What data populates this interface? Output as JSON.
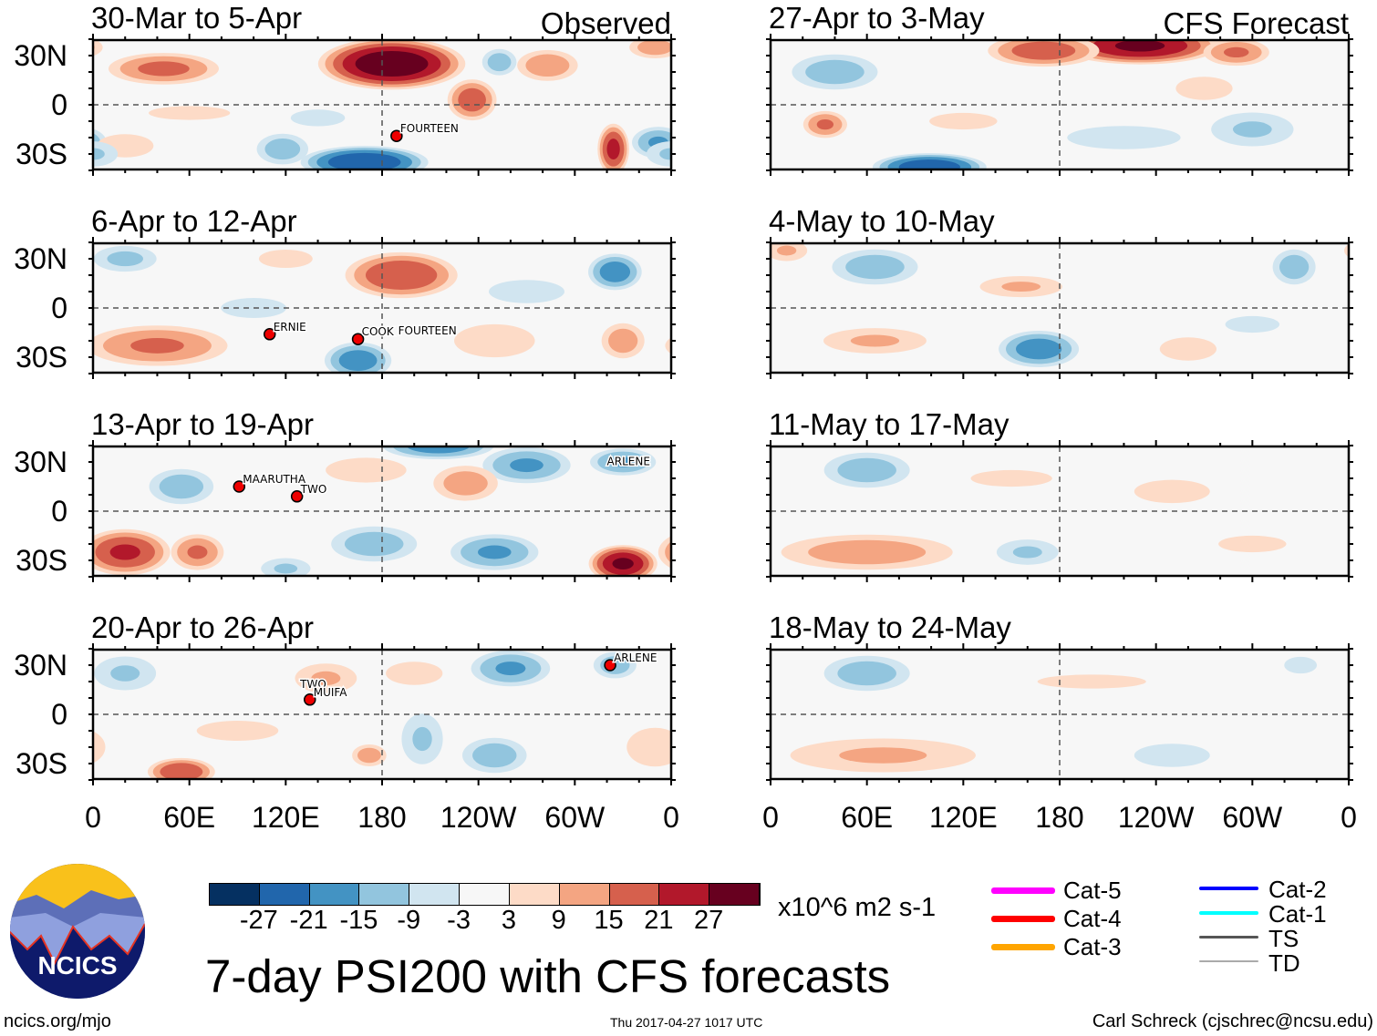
{
  "title": "7-day PSI200 with CFS forecasts",
  "units": "x10^6 m2 s-1",
  "footer": {
    "left": "ncics.org/mjo",
    "center": "Thu 2017-04-27 1017 UTC",
    "right": "Carl Schreck (cjschrec@ncsu.edu)"
  },
  "logo_text": "NCICS",
  "lat_labels": [
    "30N",
    "0",
    "30S"
  ],
  "lon_labels": [
    "0",
    "60E",
    "120E",
    "180",
    "120W",
    "60W",
    "0"
  ],
  "colorbar": {
    "labels": [
      "-27",
      "-21",
      "-15",
      "-9",
      "-3",
      "3",
      "9",
      "15",
      "21",
      "27"
    ],
    "colors": [
      "#053061",
      "#2166ac",
      "#4393c3",
      "#92c5de",
      "#d1e5f0",
      "#f7f7f7",
      "#fddbc7",
      "#f4a582",
      "#d6604d",
      "#b2182b",
      "#67001f"
    ]
  },
  "storm_legend": [
    {
      "label": "Cat-5",
      "color": "#ff00ff"
    },
    {
      "label": "Cat-4",
      "color": "#ff0000"
    },
    {
      "label": "Cat-3",
      "color": "#ffa500"
    },
    {
      "label": "Cat-2",
      "color": "#0000ff"
    },
    {
      "label": "Cat-1",
      "color": "#00ffff"
    },
    {
      "label": "TS",
      "color": "#555555"
    },
    {
      "label": "TD",
      "color": "#aaaaaa"
    }
  ],
  "columns": {
    "left": "Observed",
    "right": "CFS Forecast"
  },
  "chart_data": {
    "type": "heatmap",
    "variable": "PSI200 anomaly",
    "lon_range": [
      0,
      360
    ],
    "lat_range": [
      -40,
      40
    ],
    "blob_format": "[center_lon, center_lat, half_width_lon_deg, half_width_lat_deg, peak_value]",
    "panels": [
      {
        "title": "30-Mar to 5-Apr",
        "source": "Observed",
        "blobs": [
          [
            186,
            25,
            32,
            11,
            32
          ],
          [
            44,
            22,
            25,
            7,
            17
          ],
          [
            236,
            3,
            11,
            9,
            19
          ],
          [
            169,
            -35,
            28,
            7,
            -27
          ],
          [
            118,
            -27,
            12,
            7,
            -13
          ],
          [
            324,
            -27,
            7,
            11,
            23
          ],
          [
            352,
            -23,
            12,
            7,
            -16
          ],
          [
            283,
            24,
            14,
            7,
            14
          ],
          [
            350,
            35,
            12,
            5,
            13
          ],
          [
            253,
            26,
            8,
            6,
            -13
          ],
          [
            20,
            -25,
            15,
            6,
            7
          ],
          [
            0,
            -30,
            12,
            6,
            -10
          ],
          [
            140,
            -8,
            20,
            6,
            -4
          ],
          [
            60,
            -5,
            30,
            5,
            4
          ]
        ],
        "storms": [
          {
            "name": "FOURTEEN",
            "lon": 189,
            "lat": -19
          }
        ]
      },
      {
        "title": "6-Apr to 12-Apr",
        "source": "Observed",
        "blobs": [
          [
            192,
            20,
            25,
            10,
            21
          ],
          [
            40,
            -23,
            32,
            9,
            16
          ],
          [
            325,
            22,
            12,
            8,
            -19
          ],
          [
            20,
            30,
            15,
            6,
            -11
          ],
          [
            330,
            -20,
            10,
            8,
            13
          ],
          [
            165,
            -32,
            15,
            8,
            -19
          ],
          [
            250,
            -20,
            20,
            8,
            9
          ],
          [
            270,
            10,
            20,
            6,
            -7
          ],
          [
            100,
            0,
            20,
            6,
            -5
          ],
          [
            120,
            30,
            15,
            5,
            6
          ]
        ],
        "storms": [
          {
            "name": "ERNIE",
            "lon": 110,
            "lat": -16
          },
          {
            "name": "COOK",
            "lon": 165,
            "lat": -19
          },
          {
            "name": "FOURTEEN",
            "lon": 190,
            "lat": -16,
            "nomark": true
          }
        ]
      },
      {
        "title": "13-Apr to 19-Apr",
        "source": "Observed",
        "blobs": [
          [
            215,
            40,
            25,
            6,
            -19
          ],
          [
            270,
            28,
            20,
            8,
            -16
          ],
          [
            330,
            30,
            15,
            6,
            -16
          ],
          [
            232,
            17,
            15,
            8,
            13
          ],
          [
            20,
            -25,
            20,
            10,
            22
          ],
          [
            65,
            -25,
            12,
            8,
            16
          ],
          [
            330,
            -32,
            15,
            8,
            28
          ],
          [
            250,
            -25,
            20,
            8,
            -16
          ],
          [
            175,
            -20,
            20,
            8,
            -13
          ],
          [
            120,
            -35,
            12,
            5,
            -10
          ],
          [
            55,
            15,
            15,
            8,
            -13
          ],
          [
            170,
            25,
            20,
            6,
            9
          ]
        ],
        "storms": [
          {
            "name": "MAARUTHA",
            "lon": 91,
            "lat": 15
          },
          {
            "name": "TWO",
            "lon": 127,
            "lat": 9
          },
          {
            "name": "ARLENE",
            "lon": 320,
            "lat": 28,
            "nomark": true
          }
        ]
      },
      {
        "title": "20-Apr to 26-Apr",
        "source": "Observed",
        "blobs": [
          [
            145,
            22,
            15,
            7,
            10
          ],
          [
            260,
            28,
            18,
            8,
            -16
          ],
          [
            325,
            30,
            10,
            6,
            -13
          ],
          [
            55,
            -35,
            15,
            6,
            21
          ],
          [
            250,
            -25,
            15,
            8,
            -13
          ],
          [
            205,
            -15,
            10,
            12,
            -10
          ],
          [
            172,
            -25,
            8,
            5,
            13
          ],
          [
            350,
            -20,
            15,
            10,
            7
          ],
          [
            20,
            25,
            15,
            8,
            -10
          ],
          [
            200,
            25,
            15,
            6,
            7
          ],
          [
            90,
            -10,
            25,
            6,
            5
          ]
        ],
        "storms": [
          {
            "name": "TWO",
            "lon": 129,
            "lat": 16,
            "nomark": true
          },
          {
            "name": "MUIFA",
            "lon": 135,
            "lat": 9
          },
          {
            "name": "ARLENE",
            "lon": 322,
            "lat": 30
          }
        ]
      },
      {
        "title": "27-Apr to 3-May",
        "source": "CFS Forecast",
        "blobs": [
          [
            230,
            36,
            35,
            8,
            28
          ],
          [
            170,
            33,
            25,
            7,
            19
          ],
          [
            290,
            32,
            15,
            6,
            16
          ],
          [
            40,
            20,
            20,
            8,
            -13
          ],
          [
            34,
            -12,
            10,
            6,
            16
          ],
          [
            99,
            -38,
            25,
            6,
            -26
          ],
          [
            300,
            -15,
            20,
            8,
            -10
          ],
          [
            220,
            -20,
            30,
            6,
            -7
          ],
          [
            270,
            10,
            15,
            6,
            7
          ],
          [
            120,
            -10,
            25,
            6,
            4
          ]
        ],
        "storms": []
      },
      {
        "title": "4-May to 10-May",
        "source": "CFS Forecast",
        "blobs": [
          [
            167,
            -25,
            18,
            8,
            -19
          ],
          [
            65,
            25,
            20,
            8,
            -13
          ],
          [
            326,
            25,
            10,
            8,
            -13
          ],
          [
            156,
            13,
            20,
            5,
            10
          ],
          [
            65,
            -20,
            25,
            6,
            10
          ],
          [
            260,
            -25,
            15,
            6,
            7
          ],
          [
            10,
            35,
            10,
            5,
            10
          ],
          [
            300,
            -10,
            20,
            6,
            -4
          ]
        ],
        "storms": []
      },
      {
        "title": "11-May to 17-May",
        "source": "CFS Forecast",
        "blobs": [
          [
            60,
            25,
            20,
            8,
            -13
          ],
          [
            60,
            -25,
            40,
            8,
            13
          ],
          [
            160,
            -25,
            15,
            6,
            -10
          ],
          [
            250,
            12,
            20,
            6,
            7
          ],
          [
            150,
            20,
            30,
            6,
            4
          ],
          [
            300,
            -20,
            25,
            6,
            4
          ]
        ],
        "storms": []
      },
      {
        "title": "18-May to 24-May",
        "source": "CFS Forecast",
        "blobs": [
          [
            60,
            25,
            20,
            8,
            -13
          ],
          [
            70,
            -25,
            45,
            8,
            10
          ],
          [
            250,
            -25,
            20,
            6,
            -7
          ],
          [
            200,
            20,
            40,
            5,
            4
          ],
          [
            330,
            30,
            10,
            5,
            -5
          ]
        ],
        "storms": []
      }
    ]
  }
}
